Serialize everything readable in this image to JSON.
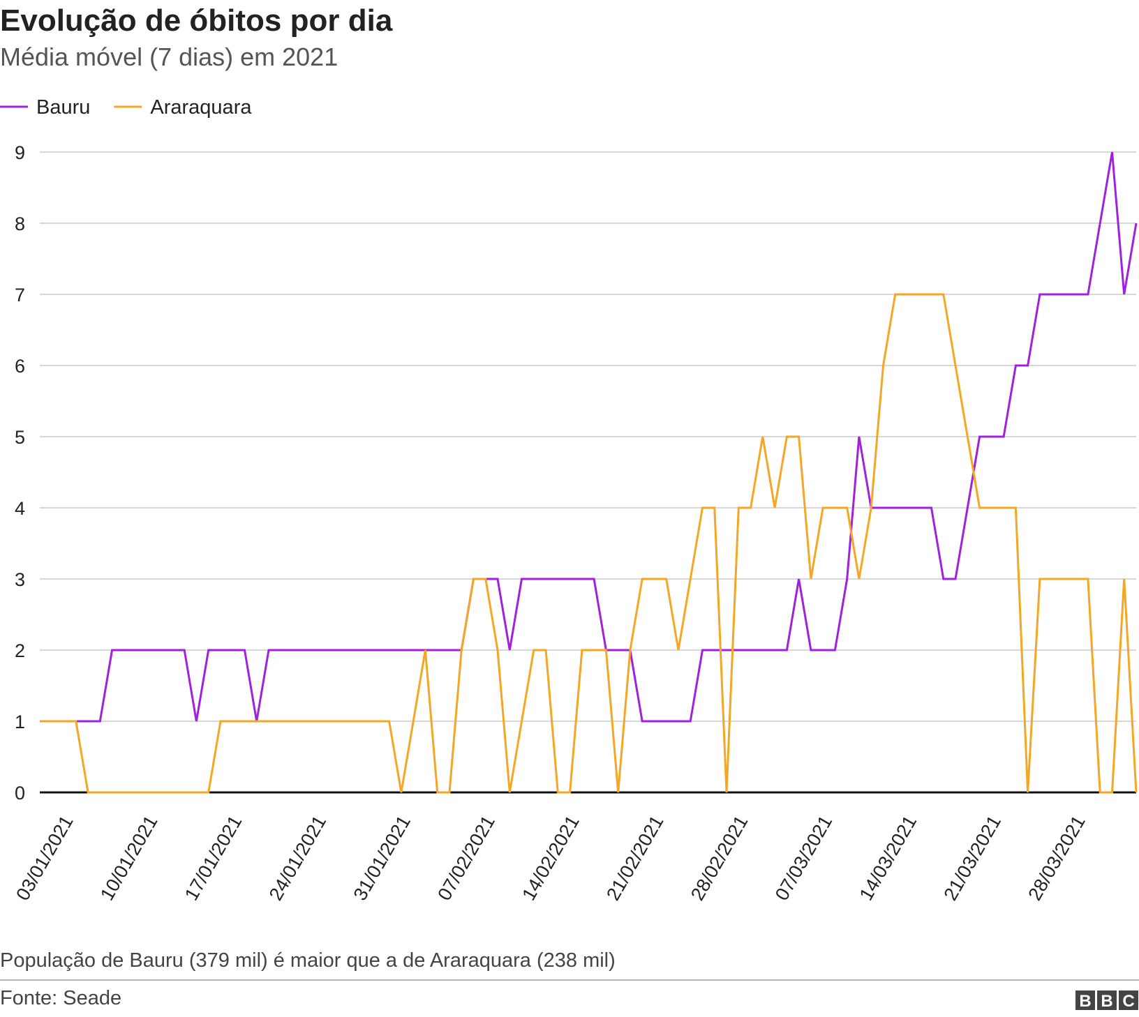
{
  "chart_data": {
    "type": "line",
    "title": "Evolução de óbitos por dia",
    "subtitle": "Média móvel (7 dias) em 2021",
    "note": "População de Bauru (379 mil) é maior que a de Araraquara (238 mil)",
    "source": "Fonte: Seade",
    "logo": [
      "B",
      "B",
      "C"
    ],
    "categories": [
      null,
      null,
      "03/01/2021",
      null,
      null,
      null,
      null,
      null,
      null,
      "10/01/2021",
      null,
      null,
      null,
      null,
      null,
      null,
      "17/01/2021",
      null,
      null,
      null,
      null,
      null,
      null,
      "24/01/2021",
      null,
      null,
      null,
      null,
      null,
      null,
      "31/01/2021",
      null,
      null,
      null,
      null,
      null,
      null,
      "07/02/2021",
      null,
      null,
      null,
      null,
      null,
      null,
      "14/02/2021",
      null,
      null,
      null,
      null,
      null,
      null,
      "21/02/2021",
      null,
      null,
      null,
      null,
      null,
      null,
      "28/02/2021",
      null,
      null,
      null,
      null,
      null,
      null,
      "07/03/2021",
      null,
      null,
      null,
      null,
      null,
      null,
      "14/03/2021",
      null,
      null,
      null,
      null,
      null,
      null,
      "21/03/2021",
      null,
      null,
      null,
      null,
      null,
      null,
      "28/03/2021",
      null,
      null,
      null,
      null,
      null
    ],
    "series": [
      {
        "name": "Bauru",
        "color": "#a020e0",
        "values": [
          1,
          1,
          1,
          1,
          1,
          1,
          2,
          2,
          2,
          2,
          2,
          2,
          2,
          1,
          2,
          2,
          2,
          2,
          1,
          2,
          2,
          2,
          2,
          2,
          2,
          2,
          2,
          2,
          2,
          2,
          2,
          2,
          2,
          2,
          2,
          2,
          3,
          3,
          3,
          2,
          3,
          3,
          3,
          3,
          3,
          3,
          3,
          2,
          2,
          2,
          1,
          1,
          1,
          1,
          1,
          2,
          2,
          2,
          2,
          2,
          2,
          2,
          2,
          3,
          2,
          2,
          2,
          3,
          5,
          4,
          4,
          4,
          4,
          4,
          4,
          3,
          3,
          4,
          5,
          5,
          5,
          6,
          6,
          7,
          7,
          7,
          7,
          7,
          8,
          9,
          7,
          8
        ]
      },
      {
        "name": "Araraquara",
        "color": "#f5a623",
        "values": [
          1,
          1,
          1,
          1,
          0,
          0,
          0,
          0,
          0,
          0,
          0,
          0,
          0,
          0,
          0,
          1,
          1,
          1,
          1,
          1,
          1,
          1,
          1,
          1,
          1,
          1,
          1,
          1,
          1,
          1,
          0,
          1,
          2,
          0,
          0,
          2,
          3,
          3,
          2,
          0,
          1,
          2,
          2,
          0,
          0,
          2,
          2,
          2,
          0,
          2,
          3,
          3,
          3,
          2,
          3,
          4,
          4,
          0,
          4,
          4,
          5,
          4,
          5,
          5,
          3,
          4,
          4,
          4,
          3,
          4,
          6,
          7,
          7,
          7,
          7,
          7,
          6,
          5,
          4,
          4,
          4,
          4,
          0,
          3,
          3,
          3,
          3,
          3,
          0,
          0,
          3,
          0
        ]
      }
    ],
    "ylim": [
      0,
      9
    ],
    "yticks": [
      0,
      1,
      2,
      3,
      4,
      5,
      6,
      7,
      8,
      9
    ],
    "grid": true,
    "legend": "top-left"
  }
}
